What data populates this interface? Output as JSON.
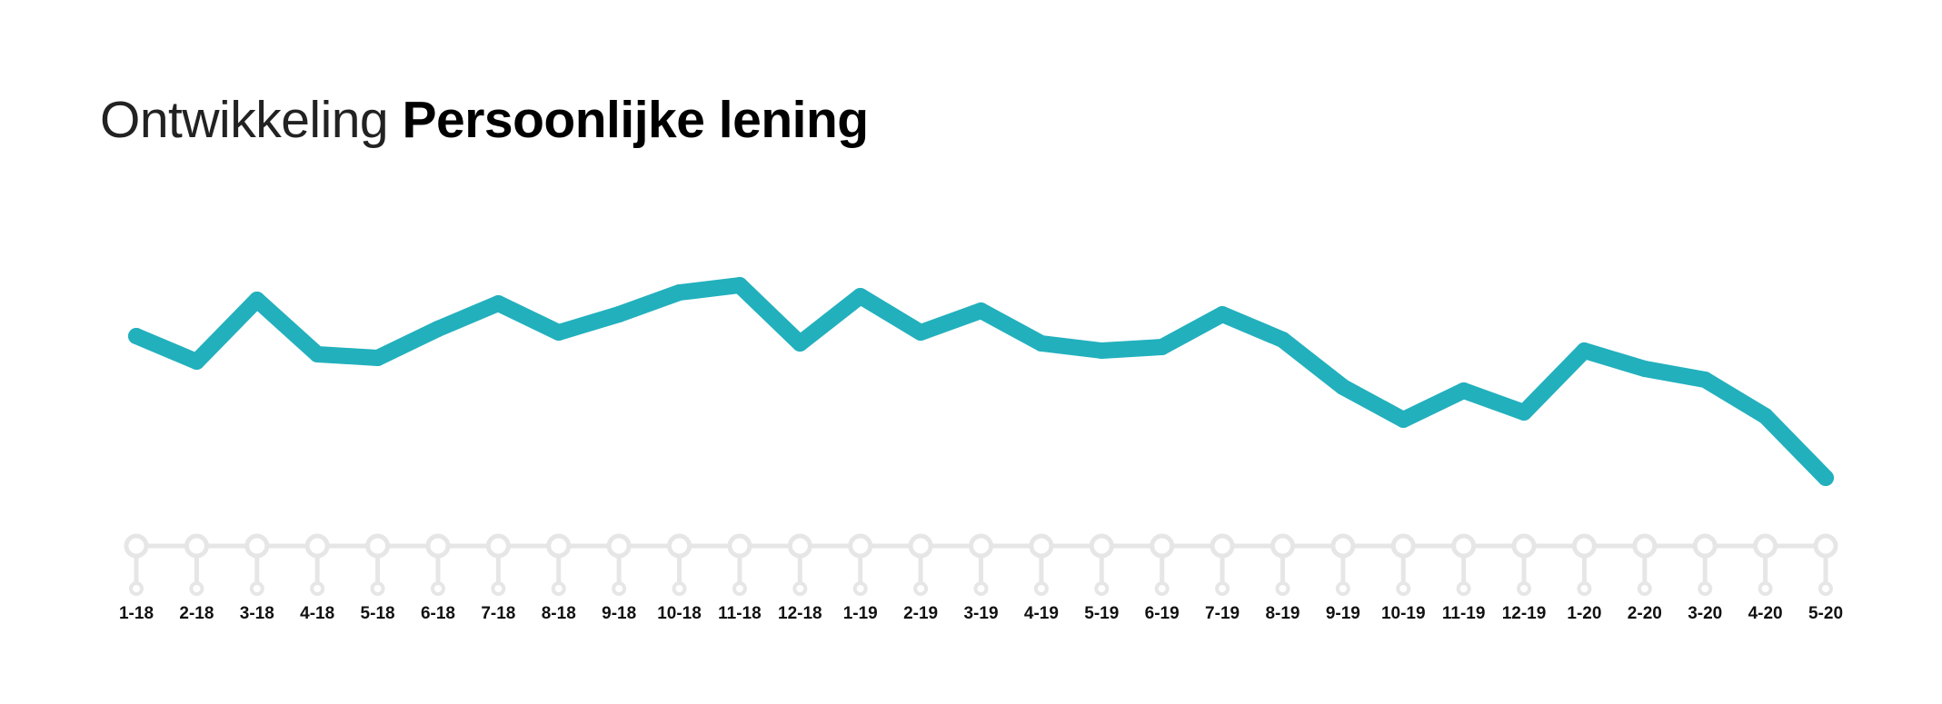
{
  "title": {
    "light": "Ontwikkeling",
    "bold": "Persoonlijke lening"
  },
  "colors": {
    "line": "#22b0bd",
    "timeline": "#e6e6e6",
    "text": "#111111"
  },
  "chart_data": {
    "type": "line",
    "title": "Ontwikkeling Persoonlijke lening",
    "xlabel": "",
    "ylabel": "",
    "grid": false,
    "legend": "none",
    "categories": [
      "1-18",
      "2-18",
      "3-18",
      "4-18",
      "5-18",
      "6-18",
      "7-18",
      "8-18",
      "9-18",
      "10-18",
      "11-18",
      "12-18",
      "1-19",
      "2-19",
      "3-19",
      "4-19",
      "5-19",
      "6-19",
      "7-19",
      "8-19",
      "9-19",
      "10-19",
      "11-19",
      "12-19",
      "1-20",
      "2-20",
      "3-20",
      "4-20",
      "5-20"
    ],
    "series": [
      {
        "name": "",
        "values": [
          70,
          63,
          80,
          65,
          64,
          72,
          79,
          71,
          76,
          82,
          84,
          68,
          81,
          71,
          77,
          68,
          66,
          67,
          76,
          69,
          56,
          47,
          55,
          49,
          66,
          61,
          58,
          48,
          31
        ]
      }
    ],
    "ylim": [
      0,
      100
    ]
  }
}
